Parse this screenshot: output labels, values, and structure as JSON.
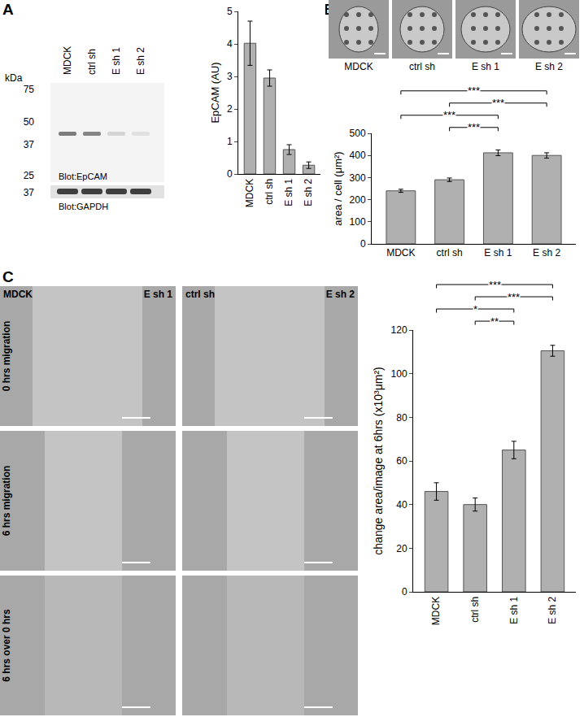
{
  "chart_data": [
    {
      "type": "bar",
      "ylabel": "EpCAM (AU)",
      "categories": [
        "MDCK",
        "ctrl sh",
        "E sh 1",
        "E sh 2"
      ],
      "values": [
        4.02,
        2.95,
        0.75,
        0.27
      ],
      "errors": [
        0.68,
        0.25,
        0.15,
        0.1
      ],
      "color": "#b0b0b0",
      "ylim": [
        0,
        5
      ],
      "yticks": [
        0,
        1,
        2,
        3,
        4,
        5
      ],
      "grid": false,
      "significance": []
    },
    {
      "type": "bar",
      "ylabel": "area / cell (μm²)",
      "categories": [
        "MDCK",
        "ctrl sh",
        "E sh 1",
        "E sh 2"
      ],
      "values": [
        240,
        290,
        412,
        400
      ],
      "errors": [
        7,
        8,
        13,
        12
      ],
      "color": "#b0b0b0",
      "ylim": [
        0,
        500
      ],
      "yticks": [
        0,
        100,
        200,
        300,
        400,
        500
      ],
      "grid": false,
      "significance": [
        {
          "from": "MDCK",
          "to": "E sh 2",
          "label": "***"
        },
        {
          "from": "ctrl sh",
          "to": "E sh 2",
          "label": "***"
        },
        {
          "from": "MDCK",
          "to": "E sh 1",
          "label": "***"
        },
        {
          "from": "ctrl sh",
          "to": "E sh 1",
          "label": "***"
        }
      ]
    },
    {
      "type": "bar",
      "ylabel": "change area/image at 6hrs (x10³μm²)",
      "categories": [
        "MDCK",
        "ctrl sh",
        "E sh 1",
        "E sh 2"
      ],
      "values": [
        46,
        40,
        65,
        110.5
      ],
      "errors": [
        4,
        3,
        4,
        2.5
      ],
      "color": "#b0b0b0",
      "ylim": [
        0,
        120
      ],
      "yticks": [
        0,
        20,
        40,
        60,
        80,
        100,
        120
      ],
      "grid": false,
      "significance": [
        {
          "from": "MDCK",
          "to": "E sh 2",
          "label": "***"
        },
        {
          "from": "ctrl sh",
          "to": "E sh 2",
          "label": "***"
        },
        {
          "from": "MDCK",
          "to": "E sh 1",
          "label": "*"
        },
        {
          "from": "ctrl sh",
          "to": "E sh 1",
          "label": "**"
        }
      ]
    }
  ],
  "figure": {
    "panel_letters": [
      "A",
      "B",
      "C"
    ],
    "blot": {
      "lanes": [
        "MDCK",
        "ctrl sh",
        "E sh 1",
        "E sh 2"
      ],
      "unit": "kDa",
      "markers": [
        75,
        50,
        37,
        25
      ],
      "loading_marker": 37,
      "labels": [
        "Blot:EpCAM",
        "Blot:GAPDH"
      ]
    },
    "cell_images": {
      "labels": [
        "MDCK",
        "ctrl sh",
        "E sh 1",
        "E sh 2"
      ]
    },
    "migration_images": {
      "columns": [
        [
          "MDCK",
          "E sh 1"
        ],
        [
          "ctrl sh",
          "E sh 2"
        ]
      ],
      "rows": [
        "0 hrs migration",
        "6 hrs migration",
        "6 hrs over 0 hrs"
      ]
    }
  }
}
